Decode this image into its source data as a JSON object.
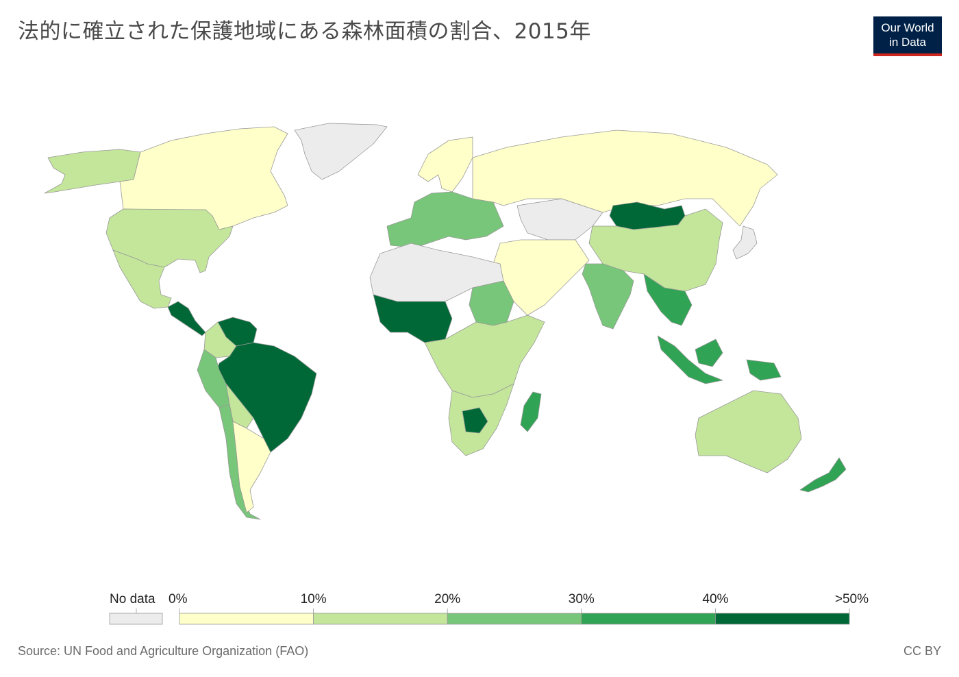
{
  "title": "法的に確立された保護地域にある森林面積の割合、2015年",
  "logo": {
    "line1": "Our World",
    "line2": "in Data"
  },
  "legend": {
    "no_data_label": "No data",
    "ticks": [
      "0%",
      "10%",
      "20%",
      "30%",
      "40%",
      ">50%"
    ],
    "bins": [
      {
        "range": "0-10",
        "color": "#ffffc9"
      },
      {
        "range": "10-20",
        "color": "#c3e69b"
      },
      {
        "range": "20-30",
        "color": "#78c679"
      },
      {
        "range": "30-40",
        "color": "#31a354"
      },
      {
        "range": ">40",
        "color": "#006837"
      }
    ],
    "no_data_color": "#ececec"
  },
  "colors": {
    "ocean": "#ffffff",
    "border": "#999999"
  },
  "regions": [
    {
      "name": "canada",
      "bin": 0
    },
    {
      "name": "usa",
      "bin": 1
    },
    {
      "name": "greenland",
      "bin": -1
    },
    {
      "name": "alaska",
      "bin": 1
    },
    {
      "name": "mexico",
      "bin": 1
    },
    {
      "name": "central-america",
      "bin": 4
    },
    {
      "name": "brazil",
      "bin": 4
    },
    {
      "name": "venezuela",
      "bin": 4
    },
    {
      "name": "colombia",
      "bin": 1
    },
    {
      "name": "peru",
      "bin": 2
    },
    {
      "name": "bolivia",
      "bin": 1
    },
    {
      "name": "argentina",
      "bin": 0
    },
    {
      "name": "chile",
      "bin": 2
    },
    {
      "name": "russia",
      "bin": 0
    },
    {
      "name": "mongolia",
      "bin": 4
    },
    {
      "name": "china",
      "bin": 1
    },
    {
      "name": "india",
      "bin": 2
    },
    {
      "name": "southeast-asia",
      "bin": 3
    },
    {
      "name": "indonesia",
      "bin": 3
    },
    {
      "name": "australia",
      "bin": 1
    },
    {
      "name": "new-zealand",
      "bin": 3
    },
    {
      "name": "madagascar",
      "bin": 3
    },
    {
      "name": "west-africa",
      "bin": 4
    },
    {
      "name": "sahara",
      "bin": -1
    },
    {
      "name": "sudan",
      "bin": 2
    },
    {
      "name": "central-africa",
      "bin": 1
    },
    {
      "name": "southern-africa",
      "bin": 1
    },
    {
      "name": "botswana",
      "bin": 4
    },
    {
      "name": "europe",
      "bin": 2
    },
    {
      "name": "scandinavia",
      "bin": 0
    },
    {
      "name": "middle-east",
      "bin": 0
    },
    {
      "name": "central-asia",
      "bin": -1
    },
    {
      "name": "japan",
      "bin": -1
    }
  ],
  "source": "Source: UN Food and Agriculture Organization (FAO)",
  "license": "CC BY"
}
